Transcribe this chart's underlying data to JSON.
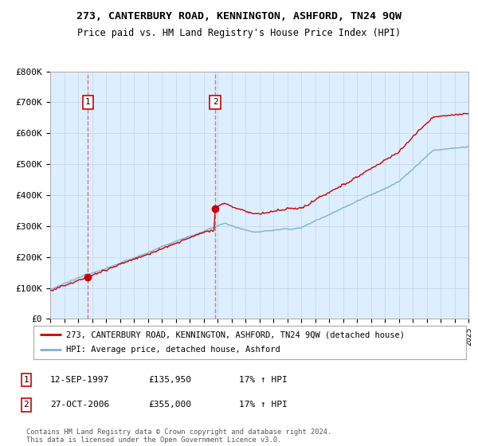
{
  "title": "273, CANTERBURY ROAD, KENNINGTON, ASHFORD, TN24 9QW",
  "subtitle": "Price paid vs. HM Land Registry's House Price Index (HPI)",
  "ylim": [
    0,
    800000
  ],
  "yticks": [
    0,
    100000,
    200000,
    300000,
    400000,
    500000,
    600000,
    700000,
    800000
  ],
  "ytick_labels": [
    "£0",
    "£100K",
    "£200K",
    "£300K",
    "£400K",
    "£500K",
    "£600K",
    "£700K",
    "£800K"
  ],
  "sale1_date": 1997.71,
  "sale1_price": 135950,
  "sale2_date": 2006.83,
  "sale2_price": 355000,
  "hpi_line_color": "#7ab3d4",
  "property_line_color": "#cc0000",
  "vline_color": "#e06060",
  "grid_color": "#c8d8e8",
  "plot_bg_color": "#ddeeff",
  "legend_property": "273, CANTERBURY ROAD, KENNINGTON, ASHFORD, TN24 9QW (detached house)",
  "legend_hpi": "HPI: Average price, detached house, Ashford",
  "table_rows": [
    [
      "1",
      "12-SEP-1997",
      "£135,950",
      "17% ↑ HPI"
    ],
    [
      "2",
      "27-OCT-2006",
      "£355,000",
      "17% ↑ HPI"
    ]
  ],
  "footer": "Contains HM Land Registry data © Crown copyright and database right 2024.\nThis data is licensed under the Open Government Licence v3.0.",
  "xmin": 1995,
  "xmax": 2025
}
